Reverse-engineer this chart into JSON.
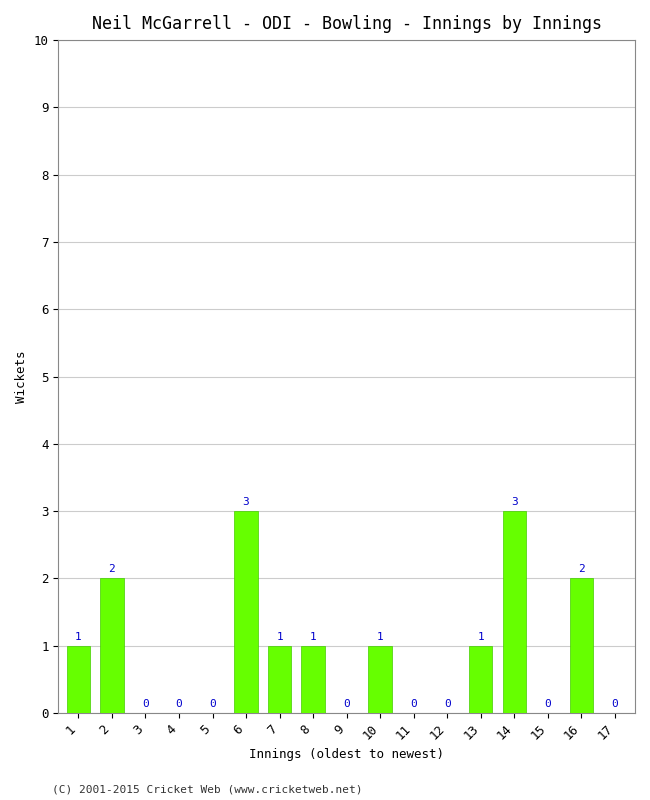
{
  "title": "Neil McGarrell - ODI - Bowling - Innings by Innings",
  "xlabel": "Innings (oldest to newest)",
  "ylabel": "Wickets",
  "innings": [
    1,
    2,
    3,
    4,
    5,
    6,
    7,
    8,
    9,
    10,
    11,
    12,
    13,
    14,
    15,
    16,
    17
  ],
  "wickets": [
    1,
    2,
    0,
    0,
    0,
    3,
    1,
    1,
    0,
    1,
    0,
    0,
    1,
    3,
    0,
    2,
    0
  ],
  "bar_color": "#66ff00",
  "bar_edge_color": "#44cc00",
  "label_color": "#0000cc",
  "ylim": [
    0,
    10
  ],
  "yticks": [
    0,
    1,
    2,
    3,
    4,
    5,
    6,
    7,
    8,
    9,
    10
  ],
  "grid_color": "#cccccc",
  "background_color": "#ffffff",
  "plot_bg_color": "#ffffff",
  "footer": "(C) 2001-2015 Cricket Web (www.cricketweb.net)",
  "title_fontsize": 12,
  "axis_label_fontsize": 9,
  "tick_label_fontsize": 9,
  "bar_label_fontsize": 8,
  "footer_fontsize": 8
}
